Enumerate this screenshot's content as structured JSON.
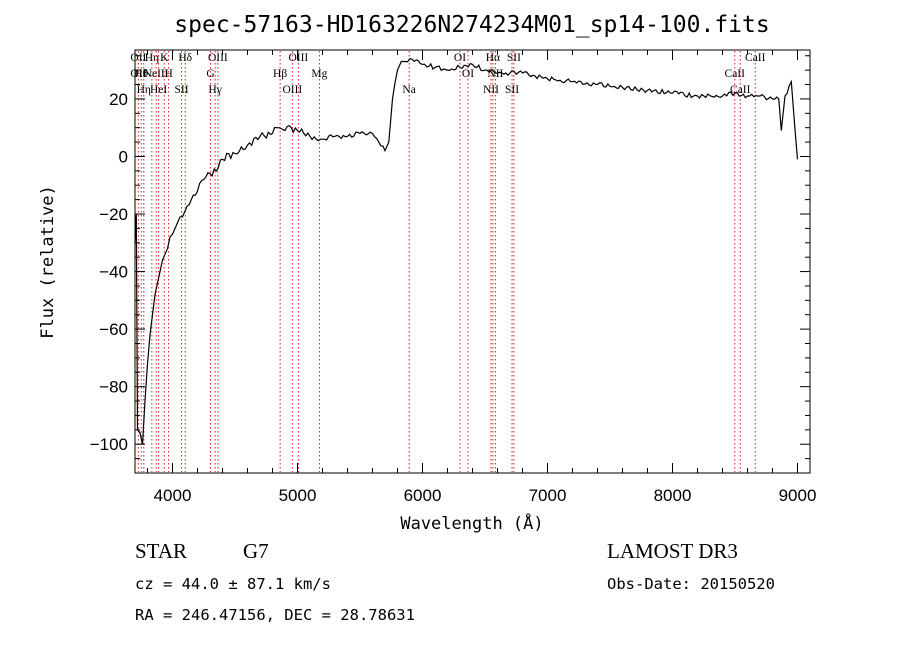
{
  "chart_data": {
    "type": "line",
    "title": "spec-57163-HD163226N274234M01_sp14-100.fits",
    "xlabel": "Wavelength (Å)",
    "ylabel": "Flux (relative)",
    "xlim": [
      3700,
      9100
    ],
    "ylim": [
      -110,
      37
    ],
    "xticks": [
      4000,
      5000,
      6000,
      7000,
      8000,
      9000
    ],
    "yticks": [
      -100,
      -80,
      -60,
      -40,
      -20,
      0,
      20
    ],
    "grid": false,
    "series": [
      {
        "x": [
          3700,
          3710,
          3720,
          3740,
          3760,
          3780,
          3800,
          3820,
          3840,
          3860,
          3880,
          3900,
          3920,
          3940,
          3960,
          3980,
          4000,
          4030,
          4060,
          4100,
          4150,
          4200,
          4250,
          4300,
          4350,
          4400,
          4500,
          4600,
          4700,
          4800,
          4850,
          4900,
          4950,
          5000,
          5050,
          5100,
          5150,
          5200,
          5300,
          5400,
          5500,
          5600,
          5700,
          5730,
          5760,
          5800,
          5830,
          5860,
          5900,
          6000,
          6100,
          6200,
          6300,
          6400,
          6500,
          6600,
          6700,
          6800,
          6900,
          7000,
          7200,
          7400,
          7600,
          7800,
          8000,
          8200,
          8400,
          8500,
          8600,
          8700,
          8800,
          8850,
          8870,
          8900,
          8950,
          9000
        ],
        "y": [
          -30,
          -20,
          -95,
          -96,
          -100,
          -85,
          -72,
          -62,
          -55,
          -48,
          -44,
          -40,
          -36,
          -34,
          -32,
          -28,
          -27,
          -24,
          -21,
          -19,
          -15,
          -12,
          -8,
          -6,
          -5,
          -1,
          1,
          4,
          7,
          8,
          10,
          9,
          10,
          9,
          8,
          7,
          6,
          6,
          7,
          7,
          8,
          8,
          2,
          5,
          20,
          30,
          33,
          33,
          34,
          32,
          31,
          30,
          31,
          32,
          30,
          29,
          29,
          29,
          28,
          27,
          26,
          25,
          24,
          23,
          22,
          21,
          21,
          22,
          21,
          21,
          20,
          20,
          9,
          21,
          26,
          -1
        ]
      }
    ],
    "line_markers": [
      {
        "wavelength": 3727,
        "labels": [
          "OII",
          "OII"
        ]
      },
      {
        "wavelength": 3750,
        "labels": [
          "Hθ"
        ]
      },
      {
        "wavelength": 3770,
        "labels": [
          "Hη"
        ]
      },
      {
        "wavelength": 3835,
        "labels": [
          "Hη"
        ]
      },
      {
        "wavelength": 3869,
        "labels": [
          "NeIII"
        ]
      },
      {
        "wavelength": 3889,
        "labels": [
          "HeI"
        ]
      },
      {
        "wavelength": 3934,
        "labels": [
          "K"
        ]
      },
      {
        "wavelength": 3969,
        "labels": [
          "H"
        ]
      },
      {
        "wavelength": 4072,
        "labels": [
          "SII"
        ]
      },
      {
        "wavelength": 4102,
        "labels": [
          "Hδ"
        ]
      },
      {
        "wavelength": 4304,
        "labels": [
          "G"
        ]
      },
      {
        "wavelength": 4341,
        "labels": [
          "Hγ"
        ]
      },
      {
        "wavelength": 4363,
        "labels": [
          "OIII"
        ]
      },
      {
        "wavelength": 4861,
        "labels": [
          "Hβ"
        ]
      },
      {
        "wavelength": 4959,
        "labels": [
          "OIII"
        ]
      },
      {
        "wavelength": 5007,
        "labels": [
          "OIII"
        ]
      },
      {
        "wavelength": 5175,
        "labels": [
          "Mg"
        ]
      },
      {
        "wavelength": 5893,
        "labels": [
          "Na"
        ]
      },
      {
        "wavelength": 6300,
        "labels": [
          "OI"
        ]
      },
      {
        "wavelength": 6364,
        "labels": [
          "OI"
        ]
      },
      {
        "wavelength": 6548,
        "labels": [
          "NII"
        ]
      },
      {
        "wavelength": 6563,
        "labels": [
          "Hα"
        ]
      },
      {
        "wavelength": 6583,
        "labels": [
          "NII"
        ]
      },
      {
        "wavelength": 6716,
        "labels": [
          "SII"
        ]
      },
      {
        "wavelength": 6731,
        "labels": [
          "SII"
        ]
      },
      {
        "wavelength": 8498,
        "labels": [
          "CaII"
        ]
      },
      {
        "wavelength": 8542,
        "labels": [
          "CaII"
        ]
      },
      {
        "wavelength": 8662,
        "labels": [
          "CaII"
        ]
      }
    ],
    "marker_color": "#cc2222",
    "line_color": "#000000"
  },
  "info": {
    "object_class": "STAR",
    "subclass": "G7",
    "survey": "LAMOST DR3",
    "cz": "cz = 44.0 ± 87.1 km/s",
    "obs_date": "Obs-Date: 20150520",
    "coords": "RA = 246.47156, DEC =  28.78631"
  }
}
